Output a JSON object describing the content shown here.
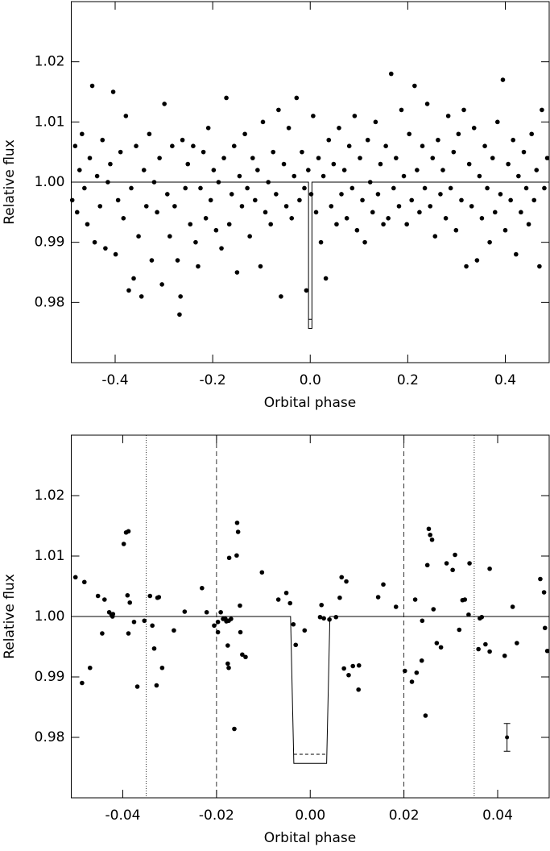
{
  "chart_data": [
    {
      "type": "scatter",
      "xlabel": "Orbital phase",
      "ylabel": "Relative flux",
      "xlim": [
        -0.49,
        0.49
      ],
      "ylim": [
        0.97,
        1.03
      ],
      "xticks": [
        -0.4,
        -0.2,
        {
          "value": 0,
          "label": "0.0"
        },
        0.2,
        0.4
      ],
      "yticks": [
        0.98,
        0.99,
        {
          "value": 1,
          "label": "1.00"
        },
        1.01,
        1.02
      ],
      "color": "#000000",
      "x": [
        -0.488,
        -0.482,
        -0.478,
        -0.473,
        -0.468,
        -0.463,
        -0.457,
        -0.452,
        -0.447,
        -0.442,
        -0.437,
        -0.431,
        -0.426,
        -0.42,
        -0.415,
        -0.41,
        -0.404,
        -0.399,
        -0.394,
        -0.389,
        -0.383,
        -0.378,
        -0.372,
        -0.367,
        -0.362,
        -0.357,
        -0.352,
        -0.346,
        -0.341,
        -0.336,
        -0.33,
        -0.325,
        -0.32,
        -0.314,
        -0.309,
        -0.304,
        -0.299,
        -0.293,
        -0.288,
        -0.283,
        -0.278,
        -0.272,
        -0.268,
        -0.266,
        -0.262,
        -0.256,
        -0.251,
        -0.246,
        -0.24,
        -0.235,
        -0.23,
        -0.225,
        -0.219,
        -0.214,
        -0.209,
        -0.204,
        -0.198,
        -0.193,
        -0.188,
        -0.182,
        -0.177,
        -0.172,
        -0.166,
        -0.161,
        -0.156,
        -0.15,
        -0.145,
        -0.14,
        -0.134,
        -0.129,
        -0.124,
        -0.118,
        -0.113,
        -0.108,
        -0.102,
        -0.097,
        -0.092,
        -0.086,
        -0.081,
        -0.076,
        -0.07,
        -0.065,
        -0.06,
        -0.054,
        -0.049,
        -0.044,
        -0.038,
        -0.033,
        -0.028,
        -0.022,
        -0.017,
        -0.012,
        -0.008,
        -0.004,
        0.002,
        0.006,
        0.012,
        0.017,
        0.022,
        0.027,
        0.032,
        0.038,
        0.043,
        0.048,
        0.054,
        0.059,
        0.064,
        0.07,
        0.075,
        0.08,
        0.086,
        0.091,
        0.096,
        0.102,
        0.107,
        0.112,
        0.118,
        0.123,
        0.128,
        0.134,
        0.139,
        0.144,
        0.15,
        0.155,
        0.16,
        0.166,
        0.171,
        0.176,
        0.182,
        0.187,
        0.192,
        0.198,
        0.203,
        0.208,
        0.214,
        0.219,
        0.224,
        0.23,
        0.235,
        0.24,
        0.246,
        0.251,
        0.256,
        0.262,
        0.267,
        0.272,
        0.278,
        0.283,
        0.288,
        0.294,
        0.299,
        0.304,
        0.31,
        0.315,
        0.32,
        0.326,
        0.331,
        0.336,
        0.342,
        0.347,
        0.352,
        0.358,
        0.363,
        0.368,
        0.374,
        0.379,
        0.384,
        0.39,
        0.395,
        0.4,
        0.406,
        0.411,
        0.416,
        0.422,
        0.427,
        0.432,
        0.438,
        0.443,
        0.448,
        0.454,
        0.459,
        0.464,
        0.47,
        0.475,
        0.48,
        0.486
      ],
      "values": [
        0.997,
        1.006,
        0.995,
        1.002,
        1.008,
        0.999,
        0.993,
        1.004,
        1.016,
        0.99,
        1.001,
        0.996,
        1.007,
        0.989,
        1.0,
        1.003,
        1.015,
        0.988,
        0.997,
        1.005,
        0.994,
        1.011,
        0.982,
        0.999,
        0.984,
        1.006,
        0.991,
        0.981,
        1.002,
        0.996,
        1.008,
        0.987,
        1.0,
        0.995,
        1.004,
        0.983,
        1.013,
        0.998,
        0.991,
        1.006,
        0.996,
        0.987,
        0.978,
        0.981,
        1.007,
        0.999,
        1.003,
        0.993,
        1.006,
        0.99,
        0.986,
        0.999,
        1.005,
        0.994,
        1.009,
        0.997,
        1.002,
        0.992,
        1.0,
        0.989,
        1.004,
        1.014,
        0.993,
        0.998,
        1.006,
        0.985,
        1.001,
        0.996,
        1.008,
        0.999,
        0.991,
        1.004,
        0.997,
        1.002,
        0.986,
        1.01,
        0.995,
        1.0,
        0.993,
        1.005,
        0.998,
        1.012,
        0.981,
        1.003,
        0.996,
        1.009,
        0.994,
        1.001,
        1.014,
        0.997,
        1.005,
        0.999,
        0.982,
        1.002,
        0.998,
        1.011,
        0.995,
        1.004,
        0.99,
        1.001,
        0.984,
        1.007,
        0.996,
        1.003,
        0.993,
        1.009,
        0.998,
        1.002,
        0.994,
        1.006,
        0.999,
        1.011,
        0.992,
        1.004,
        0.997,
        0.99,
        1.007,
        1.0,
        0.995,
        1.01,
        0.998,
        1.003,
        0.993,
        1.006,
        0.994,
        1.018,
        0.999,
        1.004,
        0.996,
        1.012,
        1.001,
        0.993,
        1.008,
        0.997,
        1.016,
        1.002,
        0.995,
        1.006,
        0.999,
        1.013,
        0.996,
        1.004,
        0.991,
        1.007,
        0.998,
        1.002,
        0.994,
        1.011,
        0.999,
        1.005,
        0.992,
        1.008,
        0.997,
        1.012,
        0.986,
        1.003,
        0.996,
        1.009,
        0.987,
        1.001,
        0.994,
        1.006,
        0.999,
        0.99,
        1.004,
        0.995,
        1.01,
        0.998,
        1.017,
        0.992,
        1.003,
        0.997,
        1.007,
        0.988,
        1.001,
        0.995,
        1.005,
        0.999,
        0.993,
        1.008,
        0.997,
        1.002,
        0.986,
        1.012,
        0.999,
        1.004
      ],
      "model": {
        "x": [
          -0.49,
          -0.0035,
          -0.0035,
          0.0035,
          0.0035,
          0.49
        ],
        "values": [
          1,
          1,
          0.9757,
          0.9757,
          1,
          1
        ]
      },
      "model_dashed": {
        "x": [
          -0.0035,
          0.0035
        ],
        "values": [
          0.9772,
          0.9772
        ]
      }
    },
    {
      "type": "scatter",
      "xlabel": "Orbital phase",
      "ylabel": "Relative flux",
      "xlim": [
        -0.051,
        0.051
      ],
      "ylim": [
        0.97,
        1.03
      ],
      "xticks": [
        -0.04,
        -0.02,
        {
          "value": 0,
          "label": "0.00"
        },
        0.02,
        0.04
      ],
      "yticks": [
        0.98,
        0.99,
        {
          "value": 1,
          "label": "1.00"
        },
        1.01,
        1.02
      ],
      "color": "#000000",
      "x": [
        -0.0501,
        -0.0487,
        -0.0482,
        -0.047,
        -0.0453,
        -0.0444,
        -0.0439,
        -0.0429,
        -0.0424,
        -0.0422,
        -0.0421,
        -0.0398,
        -0.0393,
        -0.039,
        -0.0388,
        -0.0388,
        -0.0385,
        -0.0376,
        -0.0369,
        -0.0354,
        -0.0342,
        -0.0337,
        -0.0333,
        -0.0328,
        -0.0326,
        -0.0323,
        -0.0316,
        -0.0291,
        -0.0268,
        -0.0231,
        -0.0221,
        -0.0205,
        -0.0197,
        -0.0197,
        -0.0191,
        -0.0186,
        -0.0181,
        -0.0179,
        -0.0176,
        -0.0176,
        -0.0174,
        -0.0174,
        -0.0173,
        -0.0169,
        -0.0162,
        -0.0157,
        -0.0156,
        -0.0154,
        -0.015,
        -0.0149,
        -0.0145,
        -0.0138,
        -0.0103,
        -0.0068,
        -0.0051,
        -0.0043,
        -0.0036,
        -0.0031,
        -0.0012,
        0.0021,
        0.0024,
        0.0029,
        0.0041,
        0.0055,
        0.0063,
        0.0067,
        0.0072,
        0.0077,
        0.0082,
        0.0091,
        0.0103,
        0.0104,
        0.0145,
        0.0156,
        0.0183,
        0.0202,
        0.0217,
        0.0224,
        0.0227,
        0.0238,
        0.0239,
        0.0246,
        0.025,
        0.0253,
        0.0256,
        0.026,
        0.0263,
        0.027,
        0.0279,
        0.0291,
        0.0304,
        0.0309,
        0.0318,
        0.0325,
        0.033,
        0.0338,
        0.034,
        0.0359,
        0.0362,
        0.0366,
        0.0374,
        0.0383,
        0.0383,
        0.0415,
        0.0432,
        0.0441,
        0.0491,
        0.0499,
        0.0501,
        0.0506
      ],
      "values": [
        1.0065,
        0.989,
        1.0057,
        0.9915,
        1.0034,
        0.9972,
        1.0028,
        1.0007,
        1.0003,
        1.0,
        1.0004,
        1.012,
        1.0139,
        1.0035,
        0.9972,
        1.0141,
        1.0023,
        0.9991,
        0.9884,
        0.9993,
        1.0034,
        0.9985,
        0.9947,
        0.9886,
        1.0031,
        1.0032,
        0.9915,
        0.9977,
        1.0008,
        1.0047,
        1.0007,
        0.9985,
        0.9974,
        0.9991,
        1.0007,
        0.9996,
        0.9996,
        0.9992,
        0.9952,
        0.9922,
        0.9915,
        0.9993,
        1.0097,
        0.9996,
        0.9814,
        1.0101,
        1.0155,
        1.014,
        1.0018,
        0.9974,
        0.9937,
        0.9933,
        1.0073,
        1.0028,
        1.0039,
        1.0022,
        0.9987,
        0.9953,
        0.9977,
        0.9999,
        1.0019,
        0.9997,
        0.9995,
        0.9999,
        1.0031,
        1.0065,
        0.9914,
        1.0058,
        0.9903,
        0.9918,
        0.9879,
        0.9919,
        1.0032,
        1.0053,
        1.0016,
        0.991,
        0.9892,
        1.0028,
        0.9907,
        0.9927,
        0.9993,
        0.9836,
        1.0085,
        1.0145,
        1.0135,
        1.0127,
        1.0012,
        0.9956,
        0.9949,
        1.0088,
        1.0077,
        1.0102,
        0.9978,
        1.0027,
        1.0028,
        1.0003,
        1.0088,
        0.9946,
        0.9997,
        0.9999,
        0.9954,
        1.0079,
        0.9942,
        0.9935,
        1.0016,
        0.9956,
        1.0062,
        1.004,
        0.9981,
        0.9943
      ],
      "model": {
        "x": [
          -0.051,
          -0.0042,
          -0.0035,
          0.0035,
          0.0042,
          0.051
        ],
        "values": [
          1,
          1,
          0.9757,
          0.9757,
          1,
          1
        ]
      },
      "model_dashed": {
        "x": [
          -0.0035,
          0.0035
        ],
        "values": [
          0.9772,
          0.9772
        ]
      },
      "vlines": [
        {
          "x": -0.035,
          "style": "dotted"
        },
        {
          "x": -0.02,
          "style": "dashed"
        },
        {
          "x": 0.02,
          "style": "dashed"
        },
        {
          "x": 0.035,
          "style": "dotted"
        }
      ],
      "errorbar": {
        "x": 0.042,
        "y": 0.98,
        "err": 0.0023
      }
    }
  ]
}
